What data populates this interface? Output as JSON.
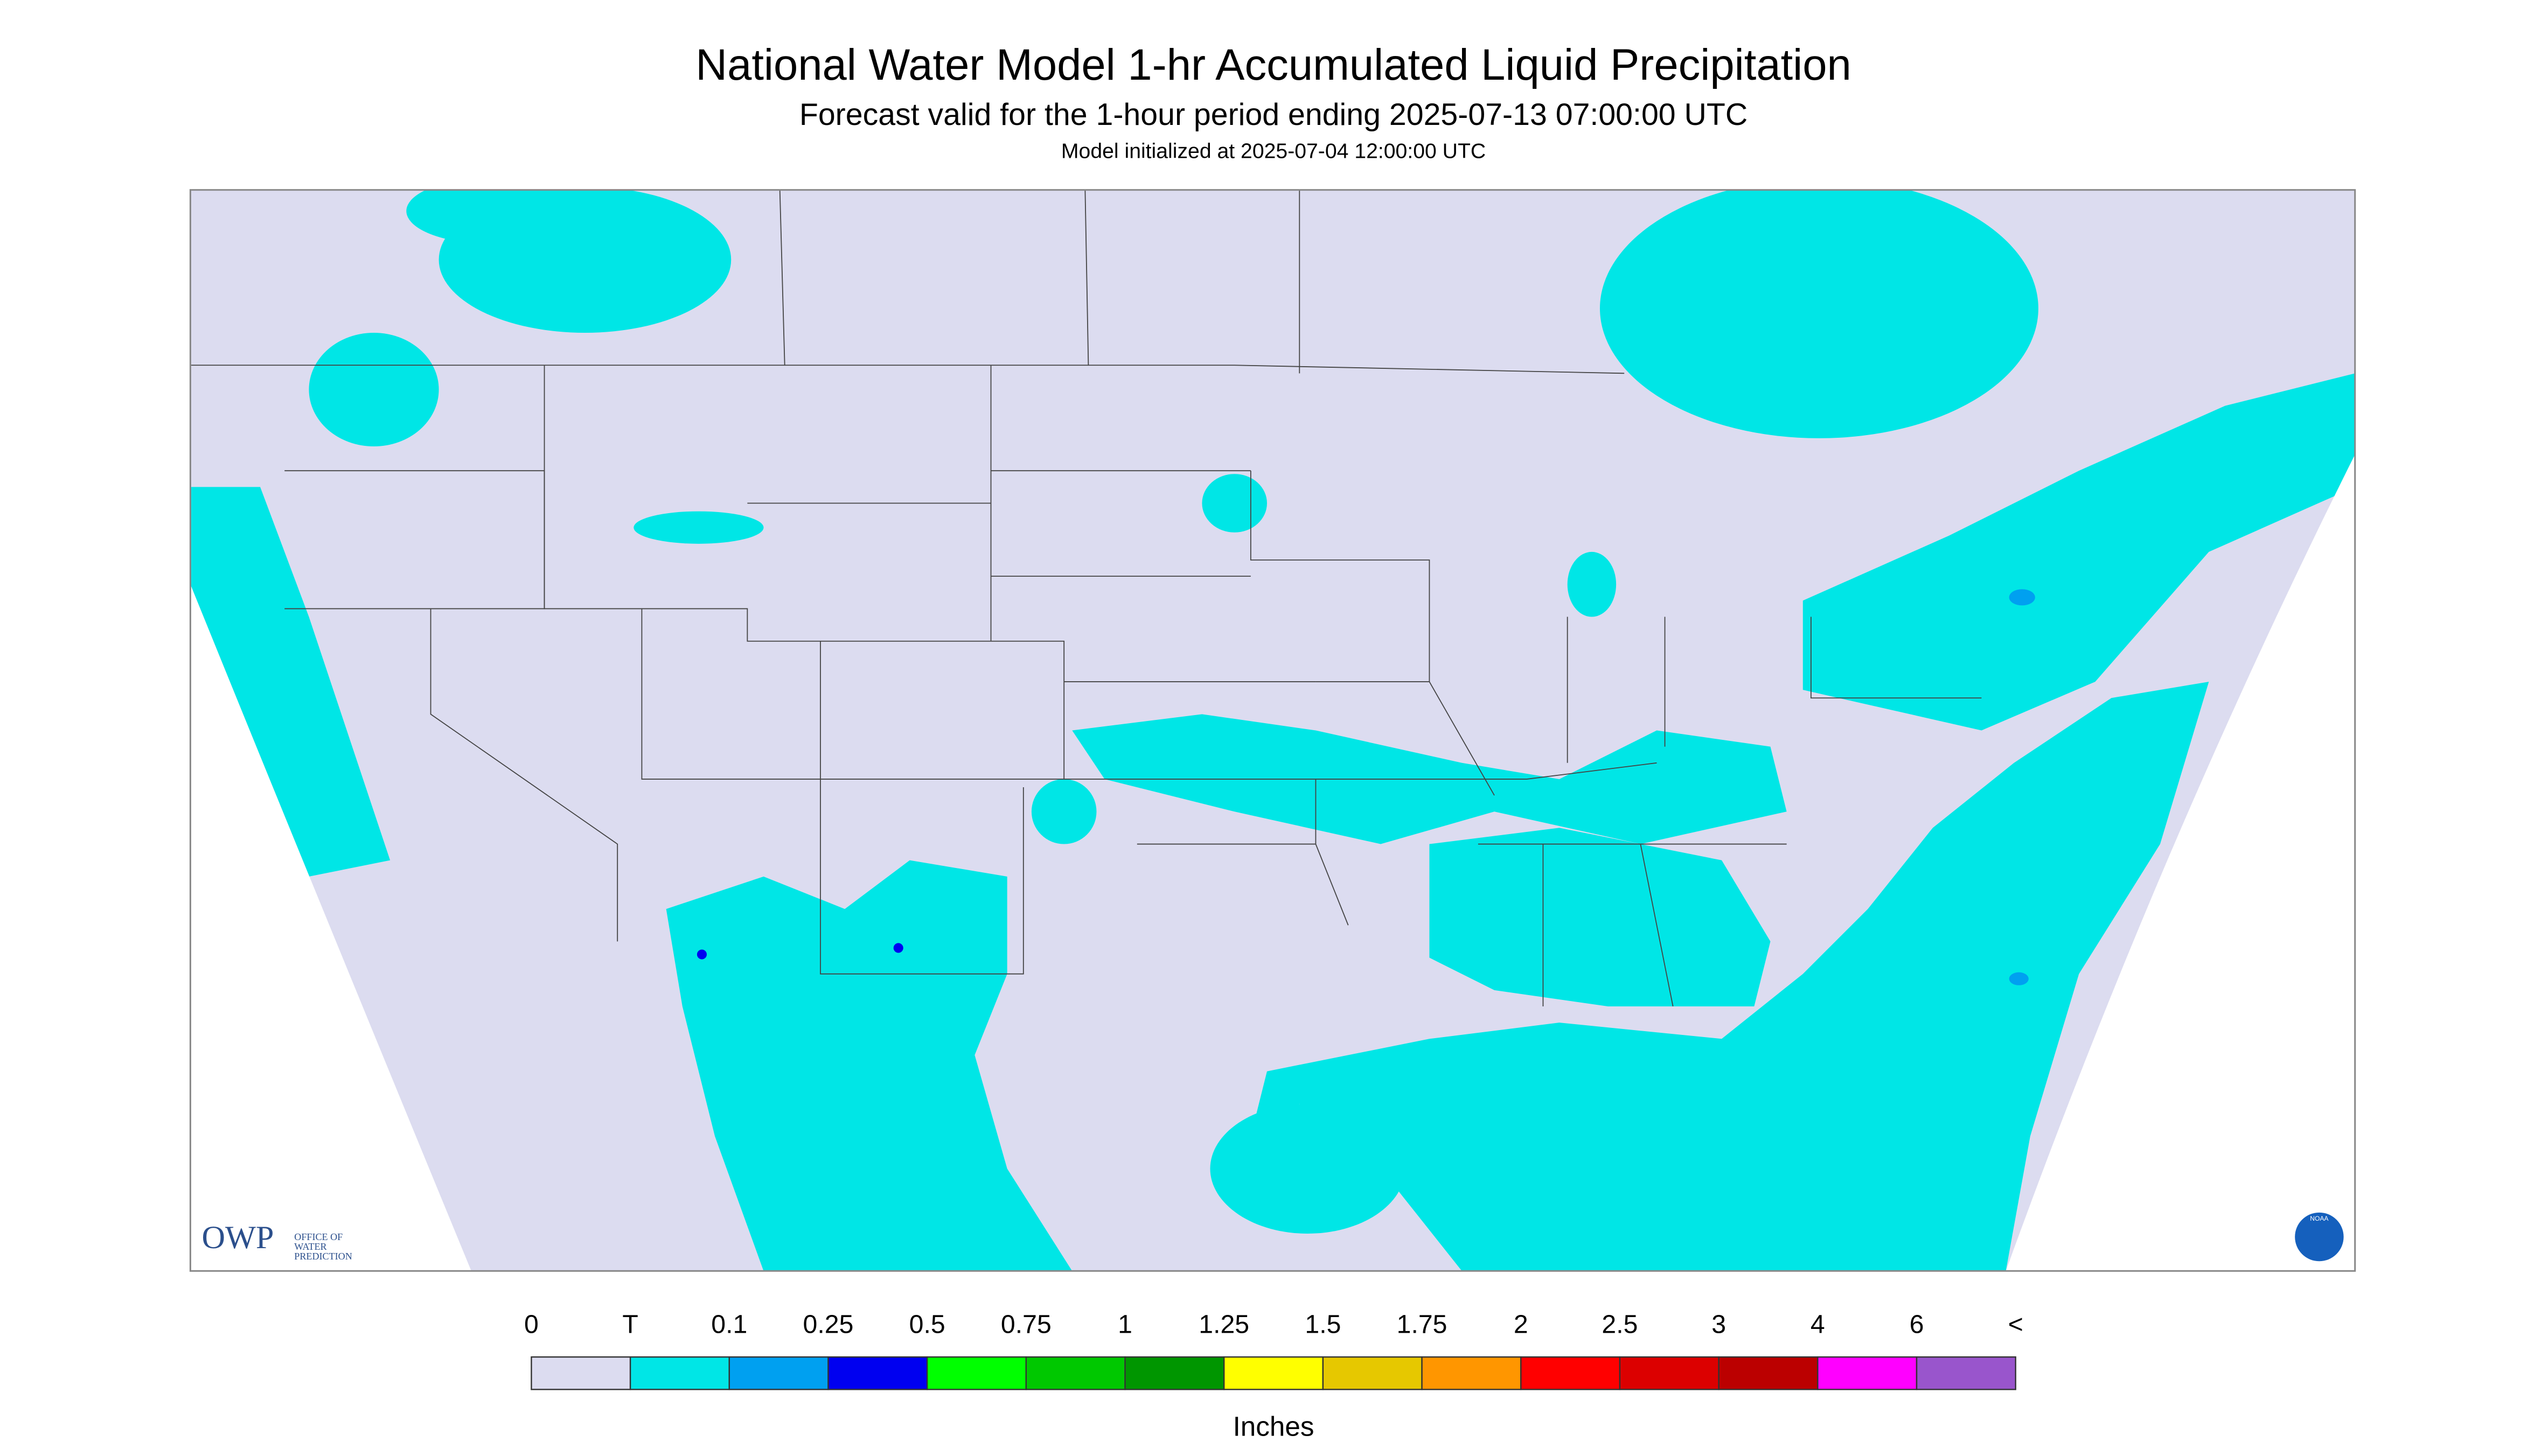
{
  "header": {
    "title": "National Water Model 1-hr Accumulated Liquid Precipitation",
    "subtitle": "Forecast valid for the 1-hour period ending 2025-07-13 07:00:00 UTC",
    "note": "Model initialized at 2025-07-04 12:00:00 UTC"
  },
  "logo": {
    "short": "OWP",
    "lines": [
      "OFFICE OF",
      "WATER",
      "PREDICTION"
    ]
  },
  "noaa": "NOAA",
  "legend": {
    "labels": [
      "0",
      "T",
      "0.1",
      "0.25",
      "0.5",
      "0.75",
      "1",
      "1.25",
      "1.5",
      "1.75",
      "2",
      "2.5",
      "3",
      "4",
      "6",
      "<"
    ],
    "colors": [
      "#dcdcf0",
      "#00e6e6",
      "#00a0f0",
      "#0000f0",
      "#00ff00",
      "#00c800",
      "#009600",
      "#ffff00",
      "#e6c800",
      "#ff9600",
      "#ff0000",
      "#dc0000",
      "#bb0000",
      "#ff00ff",
      "#9955cc"
    ],
    "units": "Inches"
  }
}
